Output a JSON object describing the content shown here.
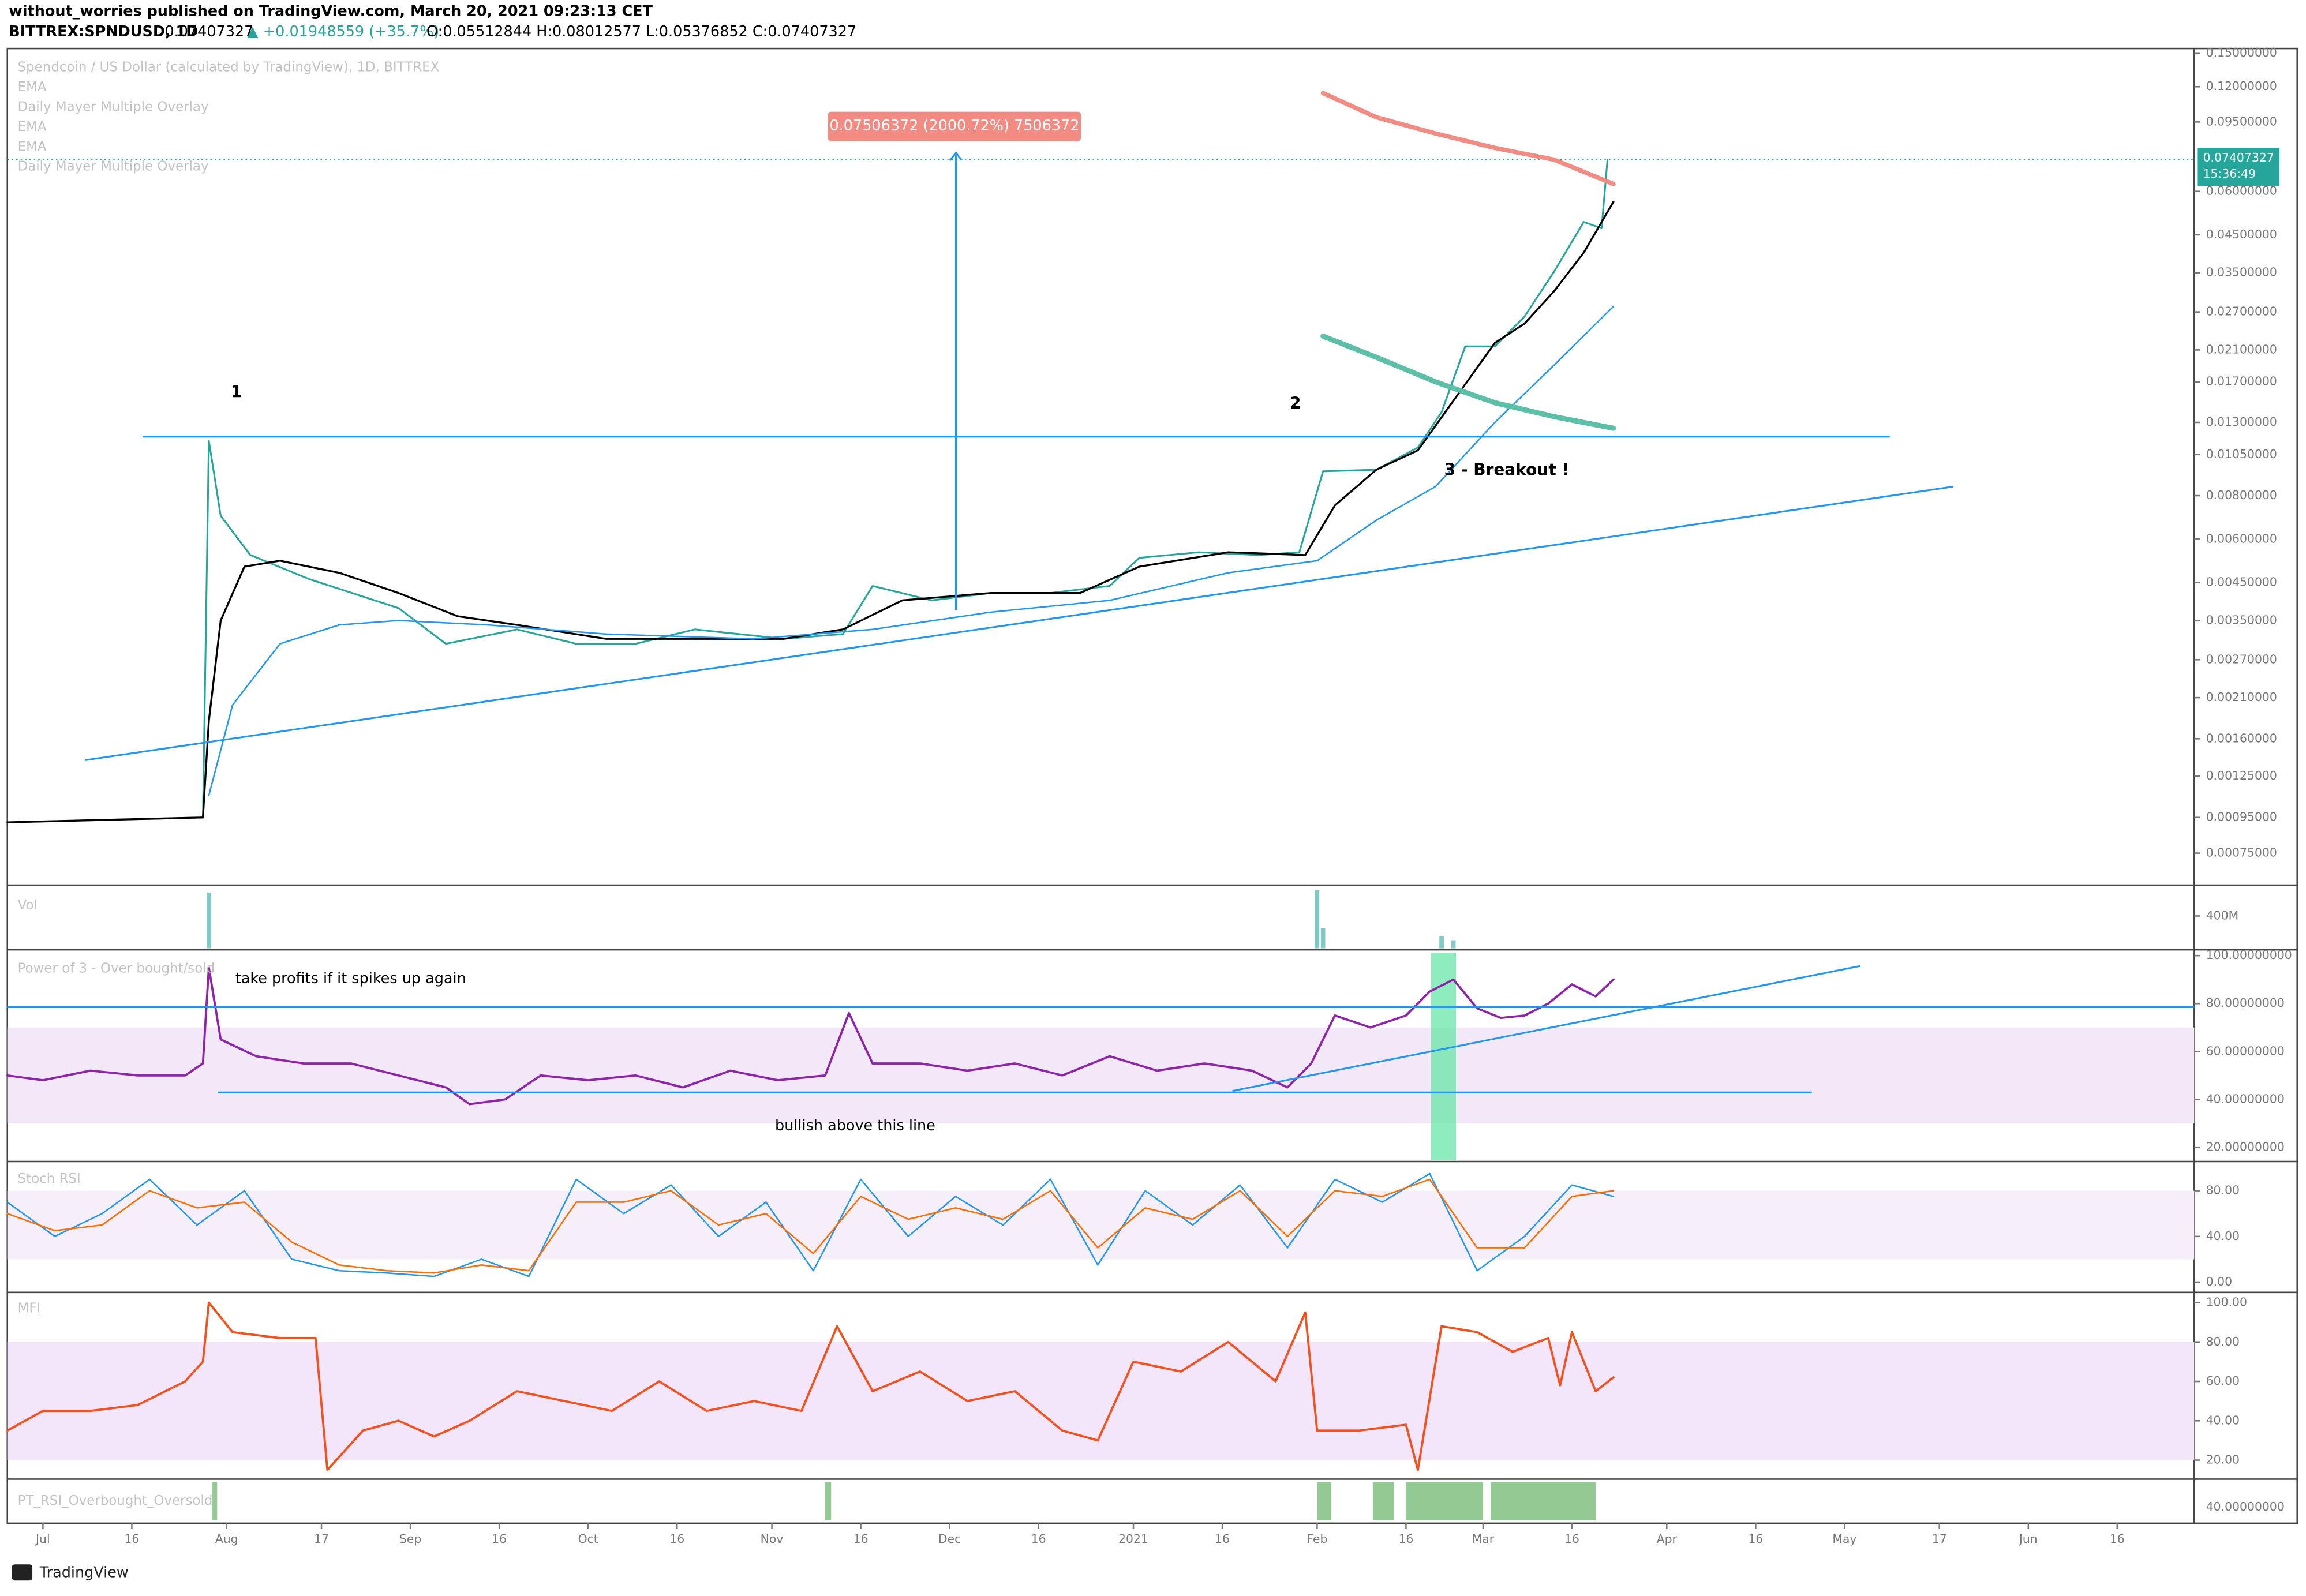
{
  "header": {
    "author_line": "without_worries published on TradingView.com, March 20, 2021 09:23:13 CET",
    "symbol": "BITTREX:SPNDUSD, 1D",
    "last": "0.07407327",
    "change": "▲ +0.01948559 (+35.7%)",
    "ohlc": "O:0.05512844 H:0.08012577 L:0.05376852 C:0.07407327"
  },
  "x_axis": {
    "xlim": [
      -6,
      363
    ],
    "xticks": [
      {
        "value": 0,
        "label": "Jul"
      },
      {
        "value": 15,
        "label": "16"
      },
      {
        "value": 31,
        "label": "Aug"
      },
      {
        "value": 47,
        "label": "17"
      },
      {
        "value": 62,
        "label": "Sep"
      },
      {
        "value": 77,
        "label": "16"
      },
      {
        "value": 92,
        "label": "Oct"
      },
      {
        "value": 107,
        "label": "16"
      },
      {
        "value": 123,
        "label": "Nov"
      },
      {
        "value": 138,
        "label": "16"
      },
      {
        "value": 153,
        "label": "Dec"
      },
      {
        "value": 168,
        "label": "16"
      },
      {
        "value": 184,
        "label": "2021"
      },
      {
        "value": 199,
        "label": "16"
      },
      {
        "value": 215,
        "label": "Feb"
      },
      {
        "value": 230,
        "label": "16"
      },
      {
        "value": 243,
        "label": "Mar"
      },
      {
        "value": 258,
        "label": "16"
      },
      {
        "value": 274,
        "label": "Apr"
      },
      {
        "value": 289,
        "label": "16"
      },
      {
        "value": 304,
        "label": "May"
      },
      {
        "value": 320,
        "label": "17"
      },
      {
        "value": 335,
        "label": "Jun"
      },
      {
        "value": 350,
        "label": "16"
      }
    ]
  },
  "price_pane": {
    "legend": [
      "Spendcoin / US Dollar (calculated by TradingView), 1D, BITTREX",
      "EMA",
      "Daily Mayer Multiple Overlay",
      "EMA",
      "EMA",
      "Daily Mayer Multiple Overlay"
    ],
    "log_scale": true,
    "ylim": [
      0.000607,
      0.1545
    ],
    "yticks": [
      {
        "value": 0.15,
        "label": "0.15000000"
      },
      {
        "value": 0.12,
        "label": "0.12000000"
      },
      {
        "value": 0.095,
        "label": "0.09500000"
      },
      {
        "value": 0.06,
        "label": "0.06000000"
      },
      {
        "value": 0.045,
        "label": "0.04500000"
      },
      {
        "value": 0.035,
        "label": "0.03500000"
      },
      {
        "value": 0.027,
        "label": "0.02700000"
      },
      {
        "value": 0.021,
        "label": "0.02100000"
      },
      {
        "value": 0.017,
        "label": "0.01700000"
      },
      {
        "value": 0.013,
        "label": "0.01300000"
      },
      {
        "value": 0.0105,
        "label": "0.01050000"
      },
      {
        "value": 0.008,
        "label": "0.00800000"
      },
      {
        "value": 0.006,
        "label": "0.00600000"
      },
      {
        "value": 0.0045,
        "label": "0.00450000"
      },
      {
        "value": 0.0035,
        "label": "0.00350000"
      },
      {
        "value": 0.0027,
        "label": "0.00270000"
      },
      {
        "value": 0.0021,
        "label": "0.00210000"
      },
      {
        "value": 0.0016,
        "label": "0.00160000"
      },
      {
        "value": 0.00125,
        "label": "0.00125000"
      },
      {
        "value": 0.00095,
        "label": "0.00095000"
      },
      {
        "value": 0.00075,
        "label": "0.00075000"
      }
    ],
    "last_price": 0.07407327,
    "timer": "15:36:49",
    "series": [
      {
        "color": "#26a69a",
        "width": 1.2,
        "x": [
          -6,
          27,
          28,
          30,
          35,
          45,
          60,
          68,
          80,
          90,
          100,
          110,
          125,
          135,
          140,
          150,
          160,
          170,
          180,
          185,
          195,
          205,
          212,
          216,
          225,
          232,
          236,
          240,
          245,
          250,
          255,
          260,
          263,
          264
        ],
        "values": [
          0.00092,
          0.00095,
          0.0115,
          0.007,
          0.0054,
          0.0046,
          0.0038,
          0.003,
          0.0033,
          0.003,
          0.003,
          0.0033,
          0.0031,
          0.0032,
          0.0044,
          0.004,
          0.0042,
          0.0042,
          0.0044,
          0.0053,
          0.0055,
          0.0054,
          0.0055,
          0.0094,
          0.0095,
          0.011,
          0.0139,
          0.0215,
          0.0215,
          0.0262,
          0.0353,
          0.049,
          0.047,
          0.07407327
        ]
      },
      {
        "color": "#000000",
        "width": 1.3,
        "x": [
          -6,
          27,
          28,
          30,
          34,
          40,
          50,
          60,
          70,
          80,
          95,
          110,
          125,
          135,
          145,
          160,
          175,
          185,
          200,
          213,
          218,
          225,
          232,
          238,
          245,
          250,
          255,
          260,
          265
        ],
        "values": [
          0.00092,
          0.00095,
          0.0018,
          0.0035,
          0.005,
          0.0052,
          0.0048,
          0.0042,
          0.0036,
          0.0034,
          0.0031,
          0.0031,
          0.0031,
          0.0033,
          0.004,
          0.0042,
          0.0042,
          0.005,
          0.0055,
          0.0054,
          0.0075,
          0.0095,
          0.0108,
          0.015,
          0.022,
          0.025,
          0.031,
          0.04,
          0.056
        ]
      },
      {
        "color": "#2196f3",
        "width": 1,
        "x": [
          28,
          32,
          40,
          50,
          60,
          75,
          95,
          120,
          140,
          160,
          180,
          200,
          215,
          225,
          235,
          245,
          255,
          265
        ],
        "values": [
          0.0011,
          0.002,
          0.003,
          0.0034,
          0.0035,
          0.0034,
          0.0032,
          0.0031,
          0.0033,
          0.0037,
          0.004,
          0.0048,
          0.0052,
          0.0068,
          0.0085,
          0.013,
          0.019,
          0.028
        ]
      },
      {
        "color": "#f28b82",
        "width": 3,
        "x": [
          216,
          225,
          235,
          245,
          255,
          265
        ],
        "values": [
          0.115,
          0.098,
          0.088,
          0.08,
          0.074,
          0.063
        ]
      },
      {
        "color": "#5cbfa8",
        "width": 3.5,
        "x": [
          216,
          225,
          235,
          245,
          255,
          265
        ],
        "values": [
          0.023,
          0.02,
          0.017,
          0.0148,
          0.0135,
          0.0125
        ]
      }
    ],
    "annotations": {
      "measure": "0.07506372 (2000.72%) 7506372",
      "point1": "1",
      "point2": "2",
      "breakout": "3 - Breakout !"
    }
  },
  "volume_pane": {
    "title": "Vol",
    "ylim": [
      0,
      727000000
    ],
    "yticks": [
      {
        "value": 400000000,
        "label": "400M"
      }
    ],
    "color": "#80cbc4",
    "x": [
      28,
      215,
      216,
      236,
      238
    ],
    "values": [
      690000000,
      720000000,
      250000000,
      150000000,
      100000000
    ]
  },
  "power_pane": {
    "title": "Power of 3 - Over bought/sold",
    "ylim": [
      15.3,
      101.2
    ],
    "band": [
      30,
      70
    ],
    "band_color": "#f3e8f7",
    "yticks": [
      {
        "value": 100,
        "label": "100.00000000"
      },
      {
        "value": 80,
        "label": "80.00000000"
      },
      {
        "value": 60,
        "label": "60.00000000"
      },
      {
        "value": 40,
        "label": "40.00000000"
      },
      {
        "value": 20,
        "label": "20.00000000"
      }
    ],
    "series": [
      {
        "color": "#8e24aa",
        "width": 1.5,
        "x": [
          -6,
          0,
          8,
          16,
          24,
          27,
          28,
          30,
          36,
          44,
          52,
          60,
          68,
          72,
          78,
          84,
          92,
          100,
          108,
          116,
          124,
          132,
          136,
          140,
          148,
          156,
          164,
          172,
          180,
          188,
          196,
          204,
          210,
          214,
          218,
          224,
          230,
          234,
          238,
          242,
          246,
          250,
          254,
          258,
          262,
          265
        ],
        "values": [
          50,
          48,
          52,
          50,
          50,
          55,
          95,
          65,
          58,
          55,
          55,
          50,
          45,
          38,
          40,
          50,
          48,
          50,
          45,
          52,
          48,
          50,
          76,
          55,
          55,
          52,
          55,
          50,
          58,
          52,
          55,
          52,
          45,
          55,
          75,
          70,
          75,
          85,
          90,
          78,
          74,
          75,
          80,
          88,
          83,
          90
        ]
      }
    ],
    "annotations": {
      "top": "take profits if it spikes up again",
      "bottom": "bullish above this line"
    }
  },
  "stoch_pane": {
    "title": "Stoch RSI",
    "ylim": [
      -7.7,
      103
    ],
    "band": [
      20,
      80
    ],
    "band_color": "#f6eff9",
    "yticks": [
      {
        "value": 80,
        "label": "80.00"
      },
      {
        "value": 40,
        "label": "40.00"
      },
      {
        "value": 0,
        "label": "0.00"
      }
    ],
    "series": [
      {
        "color": "#2196f3",
        "width": 1,
        "x": [
          -6,
          2,
          10,
          18,
          26,
          34,
          42,
          50,
          58,
          66,
          74,
          82,
          90,
          98,
          106,
          114,
          122,
          130,
          138,
          146,
          154,
          162,
          170,
          178,
          186,
          194,
          202,
          210,
          218,
          226,
          234,
          242,
          250,
          258,
          265
        ],
        "values": [
          70,
          40,
          60,
          90,
          50,
          80,
          20,
          10,
          8,
          5,
          20,
          5,
          90,
          60,
          85,
          40,
          70,
          10,
          90,
          40,
          75,
          50,
          90,
          15,
          80,
          50,
          85,
          30,
          90,
          70,
          95,
          10,
          40,
          85,
          75
        ]
      },
      {
        "color": "#ff6d00",
        "width": 1,
        "x": [
          -6,
          2,
          10,
          18,
          26,
          34,
          42,
          50,
          58,
          66,
          74,
          82,
          90,
          98,
          106,
          114,
          122,
          130,
          138,
          146,
          154,
          162,
          170,
          178,
          186,
          194,
          202,
          210,
          218,
          226,
          234,
          242,
          250,
          258,
          265
        ],
        "values": [
          60,
          45,
          50,
          80,
          65,
          70,
          35,
          15,
          10,
          8,
          15,
          10,
          70,
          70,
          80,
          50,
          60,
          25,
          75,
          55,
          65,
          55,
          80,
          30,
          65,
          55,
          80,
          40,
          80,
          75,
          90,
          30,
          30,
          75,
          80
        ]
      }
    ]
  },
  "mfi_pane": {
    "title": "MFI",
    "ylim": [
      11.1,
      103.7
    ],
    "band": [
      20,
      80
    ],
    "band_color": "#f3e6fb",
    "yticks": [
      {
        "value": 100,
        "label": "100.00"
      },
      {
        "value": 80,
        "label": "80.00"
      },
      {
        "value": 60,
        "label": "60.00"
      },
      {
        "value": 40,
        "label": "40.00"
      },
      {
        "value": 20,
        "label": "20.00"
      }
    ],
    "series": [
      {
        "color": "#f4511e",
        "width": 1.5,
        "x": [
          -6,
          0,
          8,
          16,
          24,
          27,
          28,
          32,
          40,
          46,
          48,
          54,
          60,
          66,
          72,
          80,
          88,
          96,
          104,
          112,
          120,
          128,
          134,
          140,
          148,
          156,
          164,
          172,
          178,
          184,
          192,
          200,
          208,
          213,
          215,
          222,
          230,
          232,
          236,
          242,
          248,
          254,
          256,
          258,
          262,
          265
        ],
        "values": [
          35,
          45,
          45,
          48,
          60,
          70,
          100,
          85,
          82,
          82,
          15,
          35,
          40,
          32,
          40,
          55,
          50,
          45,
          60,
          45,
          50,
          45,
          88,
          55,
          65,
          50,
          55,
          35,
          30,
          70,
          65,
          80,
          60,
          95,
          35,
          35,
          38,
          15,
          88,
          85,
          75,
          82,
          58,
          85,
          55,
          62
        ]
      }
    ]
  },
  "pt_pane": {
    "title": "PT_RSI_Overbought_Oversold",
    "label": "40.00000000",
    "color": "#93c993",
    "bars": [
      [
        28.6,
        29.4
      ],
      [
        132,
        133
      ],
      [
        215,
        217.4
      ],
      [
        224.4,
        228
      ],
      [
        230,
        243
      ],
      [
        244.3,
        262
      ]
    ]
  },
  "footer": "TradingView"
}
